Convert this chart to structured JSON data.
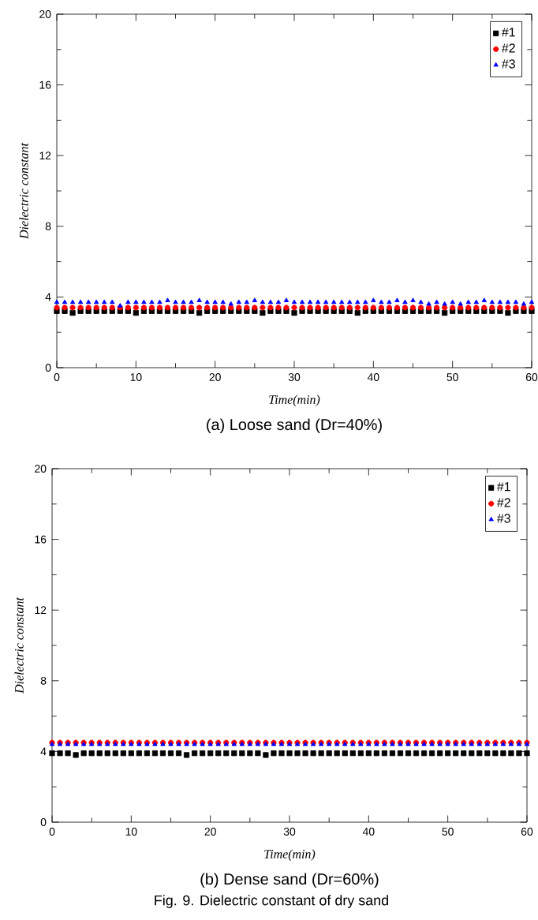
{
  "chart_data": [
    {
      "type": "scatter",
      "title": "(a) Loose sand (Dr=40%)",
      "xlabel": "Time(min)",
      "ylabel": "Dielectric constant",
      "x": [
        0,
        1,
        2,
        3,
        4,
        5,
        6,
        7,
        8,
        9,
        10,
        11,
        12,
        13,
        14,
        15,
        16,
        17,
        18,
        19,
        20,
        21,
        22,
        23,
        24,
        25,
        26,
        27,
        28,
        29,
        30,
        31,
        32,
        33,
        34,
        35,
        36,
        37,
        38,
        39,
        40,
        41,
        42,
        43,
        44,
        45,
        46,
        47,
        48,
        49,
        50,
        51,
        52,
        53,
        54,
        55,
        56,
        57,
        58,
        59,
        60
      ],
      "series": [
        {
          "name": "#1",
          "color": "#000000",
          "marker": "square",
          "values": [
            3.2,
            3.2,
            3.1,
            3.2,
            3.2,
            3.2,
            3.2,
            3.2,
            3.2,
            3.2,
            3.1,
            3.2,
            3.2,
            3.2,
            3.2,
            3.2,
            3.2,
            3.2,
            3.1,
            3.2,
            3.2,
            3.2,
            3.2,
            3.2,
            3.2,
            3.2,
            3.1,
            3.2,
            3.2,
            3.2,
            3.1,
            3.2,
            3.2,
            3.2,
            3.2,
            3.2,
            3.2,
            3.2,
            3.1,
            3.2,
            3.2,
            3.2,
            3.2,
            3.2,
            3.2,
            3.2,
            3.2,
            3.2,
            3.2,
            3.1,
            3.2,
            3.2,
            3.2,
            3.2,
            3.2,
            3.2,
            3.2,
            3.1,
            3.2,
            3.2,
            3.2
          ]
        },
        {
          "name": "#2",
          "color": "#ff0000",
          "marker": "circle",
          "values": [
            3.4,
            3.4,
            3.4,
            3.4,
            3.4,
            3.4,
            3.4,
            3.4,
            3.4,
            3.4,
            3.4,
            3.4,
            3.4,
            3.4,
            3.4,
            3.4,
            3.4,
            3.4,
            3.4,
            3.4,
            3.4,
            3.4,
            3.4,
            3.4,
            3.4,
            3.4,
            3.4,
            3.4,
            3.4,
            3.4,
            3.4,
            3.4,
            3.4,
            3.4,
            3.4,
            3.4,
            3.4,
            3.4,
            3.4,
            3.4,
            3.4,
            3.4,
            3.4,
            3.4,
            3.4,
            3.4,
            3.4,
            3.4,
            3.4,
            3.4,
            3.4,
            3.4,
            3.4,
            3.4,
            3.4,
            3.4,
            3.4,
            3.4,
            3.4,
            3.4,
            3.4
          ]
        },
        {
          "name": "#3",
          "color": "#0000ff",
          "marker": "triangle",
          "values": [
            3.7,
            3.7,
            3.7,
            3.7,
            3.7,
            3.7,
            3.7,
            3.7,
            3.5,
            3.7,
            3.7,
            3.7,
            3.7,
            3.7,
            3.8,
            3.7,
            3.7,
            3.7,
            3.8,
            3.7,
            3.7,
            3.7,
            3.6,
            3.7,
            3.7,
            3.8,
            3.7,
            3.7,
            3.7,
            3.8,
            3.7,
            3.7,
            3.7,
            3.7,
            3.7,
            3.7,
            3.7,
            3.7,
            3.7,
            3.7,
            3.8,
            3.7,
            3.7,
            3.8,
            3.7,
            3.8,
            3.7,
            3.6,
            3.7,
            3.6,
            3.7,
            3.6,
            3.7,
            3.7,
            3.8,
            3.7,
            3.7,
            3.7,
            3.7,
            3.6,
            3.7
          ]
        }
      ],
      "xlim": [
        0,
        60
      ],
      "ylim": [
        0,
        20
      ],
      "xticks": [
        0,
        10,
        20,
        30,
        40,
        50,
        60
      ],
      "yticks": [
        0,
        4,
        8,
        12,
        16,
        20
      ],
      "legend": "top right"
    },
    {
      "type": "scatter",
      "title": "(b) Dense sand (Dr=60%)",
      "xlabel": "Time(min)",
      "ylabel": "Dielectric constant",
      "x": [
        0,
        1,
        2,
        3,
        4,
        5,
        6,
        7,
        8,
        9,
        10,
        11,
        12,
        13,
        14,
        15,
        16,
        17,
        18,
        19,
        20,
        21,
        22,
        23,
        24,
        25,
        26,
        27,
        28,
        29,
        30,
        31,
        32,
        33,
        34,
        35,
        36,
        37,
        38,
        39,
        40,
        41,
        42,
        43,
        44,
        45,
        46,
        47,
        48,
        49,
        50,
        51,
        52,
        53,
        54,
        55,
        56,
        57,
        58,
        59,
        60
      ],
      "series": [
        {
          "name": "#1",
          "color": "#000000",
          "marker": "square",
          "values": [
            3.9,
            3.9,
            3.9,
            3.8,
            3.9,
            3.9,
            3.9,
            3.9,
            3.9,
            3.9,
            3.9,
            3.9,
            3.9,
            3.9,
            3.9,
            3.9,
            3.9,
            3.8,
            3.9,
            3.9,
            3.9,
            3.9,
            3.9,
            3.9,
            3.9,
            3.9,
            3.9,
            3.8,
            3.9,
            3.9,
            3.9,
            3.9,
            3.9,
            3.9,
            3.9,
            3.9,
            3.9,
            3.9,
            3.9,
            3.9,
            3.9,
            3.9,
            3.9,
            3.9,
            3.9,
            3.9,
            3.9,
            3.9,
            3.9,
            3.9,
            3.9,
            3.9,
            3.9,
            3.9,
            3.9,
            3.9,
            3.9,
            3.9,
            3.9,
            3.9,
            3.9
          ]
        },
        {
          "name": "#2",
          "color": "#ff0000",
          "marker": "circle",
          "values": [
            4.5,
            4.5,
            4.5,
            4.5,
            4.5,
            4.5,
            4.5,
            4.5,
            4.5,
            4.5,
            4.5,
            4.5,
            4.5,
            4.5,
            4.5,
            4.5,
            4.5,
            4.5,
            4.5,
            4.5,
            4.5,
            4.5,
            4.5,
            4.5,
            4.5,
            4.5,
            4.5,
            4.5,
            4.5,
            4.5,
            4.5,
            4.5,
            4.5,
            4.5,
            4.5,
            4.5,
            4.5,
            4.5,
            4.5,
            4.5,
            4.5,
            4.5,
            4.5,
            4.5,
            4.5,
            4.5,
            4.5,
            4.5,
            4.5,
            4.5,
            4.5,
            4.5,
            4.5,
            4.5,
            4.5,
            4.5,
            4.5,
            4.5,
            4.5,
            4.5,
            4.5
          ]
        },
        {
          "name": "#3",
          "color": "#0000ff",
          "marker": "triangle",
          "values": [
            4.4,
            4.4,
            4.4,
            4.4,
            4.4,
            4.4,
            4.4,
            4.4,
            4.4,
            4.4,
            4.4,
            4.4,
            4.4,
            4.4,
            4.4,
            4.4,
            4.4,
            4.4,
            4.4,
            4.4,
            4.4,
            4.4,
            4.4,
            4.4,
            4.4,
            4.4,
            4.4,
            4.4,
            4.4,
            4.4,
            4.4,
            4.4,
            4.4,
            4.4,
            4.4,
            4.4,
            4.4,
            4.4,
            4.4,
            4.4,
            4.4,
            4.4,
            4.4,
            4.4,
            4.4,
            4.4,
            4.4,
            4.4,
            4.4,
            4.4,
            4.4,
            4.4,
            4.4,
            4.4,
            4.4,
            4.4,
            4.4,
            4.4,
            4.4,
            4.4,
            4.4
          ]
        }
      ],
      "xlim": [
        0,
        60
      ],
      "ylim": [
        0,
        20
      ],
      "xticks": [
        0,
        10,
        20,
        30,
        40,
        50,
        60
      ],
      "yticks": [
        0,
        4,
        8,
        12,
        16,
        20
      ],
      "legend": "top right",
      "annotations": [
        "Fig. 9. Dielectric constant of dry sand"
      ]
    }
  ]
}
